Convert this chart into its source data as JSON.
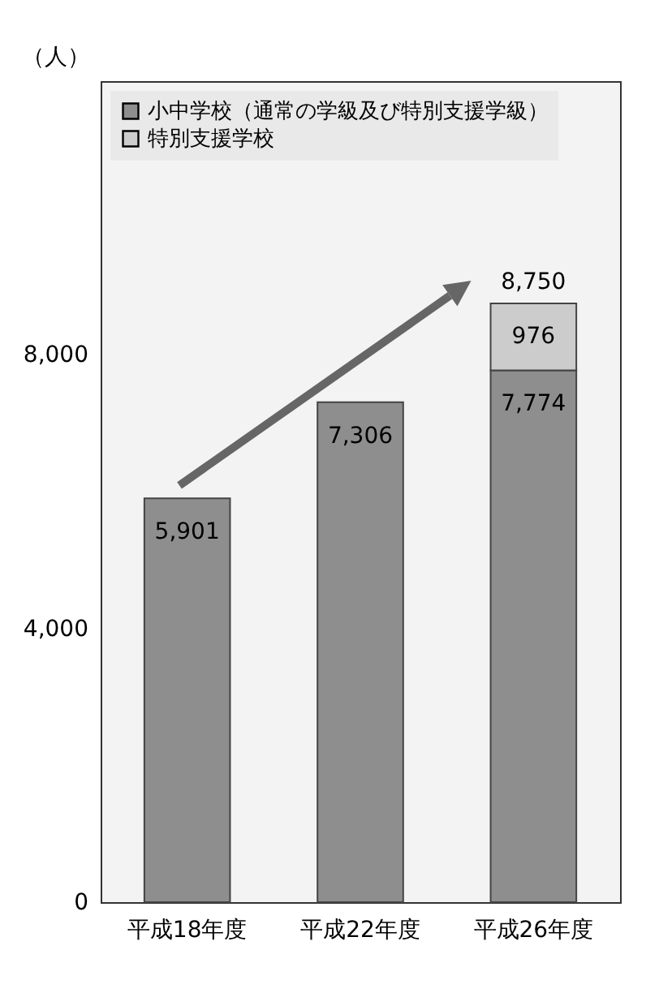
{
  "chart_data": {
    "type": "bar",
    "ylabel": "（人）",
    "stacked": true,
    "categories": [
      "平成18年度",
      "平成22年度",
      "平成26年度"
    ],
    "series": [
      {
        "name": "小中学校（通常の学級及び特別支援学級）",
        "color": "#8e8e8e",
        "values": [
          5901,
          7306,
          7774
        ],
        "value_labels": [
          "5,901",
          "7,306",
          "7,774"
        ]
      },
      {
        "name": "特別支援学校",
        "color": "#cccccc",
        "values": [
          null,
          null,
          976
        ],
        "value_labels": [
          null,
          null,
          "976"
        ]
      }
    ],
    "totals": [
      null,
      null,
      "8,750"
    ],
    "ylim": [
      0,
      12000
    ],
    "yticks": [
      0,
      {
        "value": 4000,
        "label": "4,000"
      },
      {
        "value": 8000,
        "label": "8,000"
      }
    ],
    "legend": "top left"
  }
}
